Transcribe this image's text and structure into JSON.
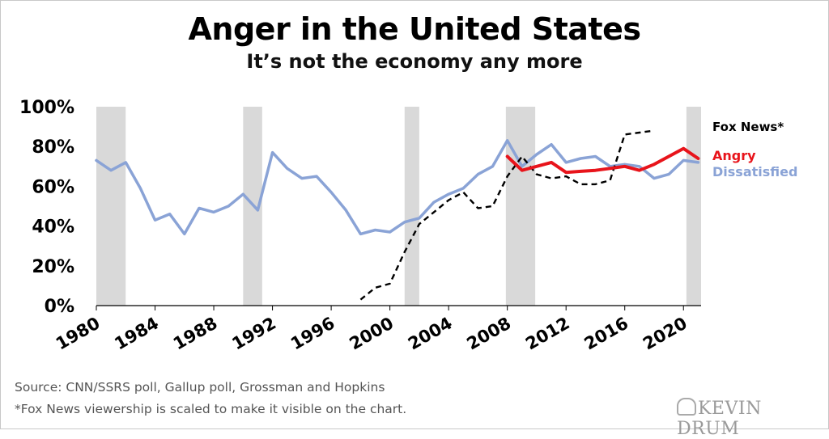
{
  "title": "Anger in the United States",
  "subtitle": "It’s not the economy any more",
  "source_note": "Source: CNN/SSRS poll, Gallup poll, Grossman and Hopkins",
  "footnote": "*Fox News viewership is scaled to make it visible on the chart.",
  "logo_text": "KEVIN DRUM",
  "colors": {
    "angry": "#e8141b",
    "dissatisfied": "#8aa3d6",
    "fox": "#000000",
    "recession": "#d9d9d9",
    "axis": "#000000"
  },
  "chart_data": {
    "type": "line",
    "title": "Anger in the United States",
    "subtitle": "It’s not the economy any more",
    "xlim": [
      1980,
      2021.2
    ],
    "ylim": [
      0,
      100
    ],
    "y_ticks": [
      0,
      20,
      40,
      60,
      80,
      100
    ],
    "y_tick_labels": [
      "0%",
      "20%",
      "40%",
      "60%",
      "80%",
      "100%"
    ],
    "x_ticks": [
      1980,
      1984,
      1988,
      1992,
      1996,
      2000,
      2004,
      2008,
      2012,
      2016,
      2020
    ],
    "x_tick_labels": [
      "1980",
      "1984",
      "1988",
      "1992",
      "1996",
      "2000",
      "2004",
      "2008",
      "2012",
      "2016",
      "2020"
    ],
    "recessions": [
      [
        1980,
        1982
      ],
      [
        1990,
        1991.3
      ],
      [
        2001,
        2002
      ],
      [
        2007.9,
        2009.9
      ],
      [
        2020.2,
        2021.2
      ]
    ],
    "series": [
      {
        "name": "Dissatisfied",
        "color": "#8aa3d6",
        "style": "solid",
        "x": [
          1980,
          1981,
          1982,
          1983,
          1984,
          1985,
          1986,
          1987,
          1988,
          1989,
          1990,
          1991,
          1992,
          1993,
          1994,
          1995,
          1996,
          1997,
          1998,
          1999,
          2000,
          2001,
          2002,
          2003,
          2004,
          2005,
          2006,
          2007,
          2008,
          2009,
          2010,
          2011,
          2012,
          2013,
          2014,
          2015,
          2016,
          2017,
          2018,
          2019,
          2020,
          2021
        ],
        "values": [
          73,
          68,
          72,
          59,
          43,
          46,
          36,
          49,
          47,
          50,
          56,
          48,
          77,
          69,
          64,
          65,
          57,
          48,
          36,
          38,
          37,
          42,
          44,
          52,
          56,
          59,
          66,
          70,
          83,
          70,
          76,
          81,
          72,
          74,
          75,
          70,
          71,
          70,
          64,
          66,
          73,
          72
        ]
      },
      {
        "name": "Angry",
        "color": "#e8141b",
        "style": "solid",
        "x": [
          2008,
          2009,
          2010,
          2011,
          2012,
          2013,
          2014,
          2015,
          2016,
          2017,
          2018,
          2019,
          2020,
          2021
        ],
        "values": [
          75,
          68,
          70,
          72,
          67,
          67.5,
          68,
          69,
          70,
          68,
          71,
          75,
          79,
          74
        ]
      },
      {
        "name": "Fox News*",
        "color": "#000000",
        "style": "dashed",
        "x": [
          1998,
          1999,
          2000,
          2001,
          2002,
          2003,
          2004,
          2005,
          2006,
          2007,
          2008,
          2009,
          2010,
          2011,
          2012,
          2013,
          2014,
          2015,
          2016,
          2017,
          2018
        ],
        "values": [
          3,
          9,
          11,
          27,
          41,
          47,
          53,
          57,
          49,
          50,
          65,
          75,
          66,
          64,
          65,
          61,
          61,
          63,
          86,
          87,
          88
        ]
      }
    ],
    "legend": [
      "Fox News*",
      "Angry",
      "Dissatisfied"
    ],
    "legend_placement": "right"
  }
}
